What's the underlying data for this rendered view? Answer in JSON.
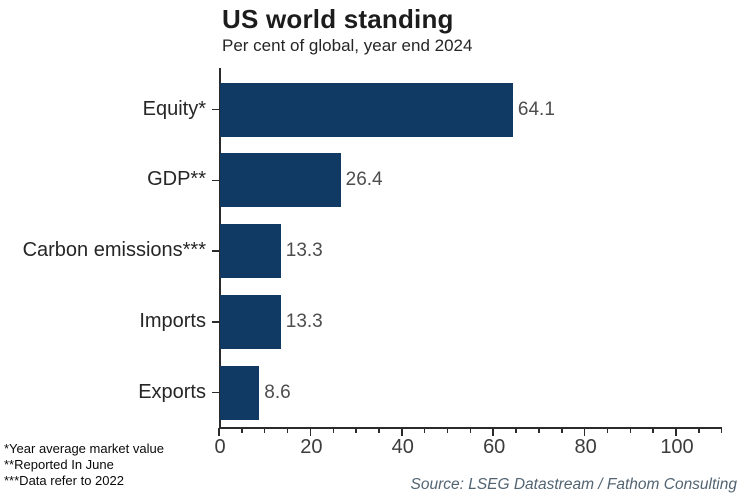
{
  "header": {
    "title": "US world standing",
    "subtitle": "Per cent of global, year end 2024"
  },
  "chart_data": {
    "type": "bar",
    "orientation": "horizontal",
    "title": "US world standing",
    "subtitle": "Per cent of global, year end 2024",
    "categories": [
      "Equity*",
      "GDP**",
      "Carbon emissions***",
      "Imports",
      "Exports"
    ],
    "values": [
      64.1,
      26.4,
      13.3,
      13.3,
      8.6
    ],
    "value_labels": [
      "64.1",
      "26.4",
      "13.3",
      "13.3",
      "8.6"
    ],
    "xlabel": "",
    "ylabel": "",
    "xlim": [
      0,
      110
    ],
    "x_major_ticks": [
      0,
      20,
      40,
      60,
      80,
      100
    ],
    "x_minor_tick_step": 5,
    "grid": false,
    "legend_position": "none",
    "bar_color": "#103a64"
  },
  "footnotes": [
    "*Year average market value",
    "**Reported In June",
    "***Data refer to 2022"
  ],
  "footer": {
    "source": "Source: LSEG Datastream / Fathom Consulting"
  },
  "colors": {
    "background": "#ffffff",
    "bar": "#103a64",
    "axis": "#2b2b2b",
    "title_text": "#1c1c1c",
    "label_text": "#262626",
    "value_text": "#4d4d4d",
    "tick_text": "#3c3c3c",
    "source_text": "#526472"
  }
}
